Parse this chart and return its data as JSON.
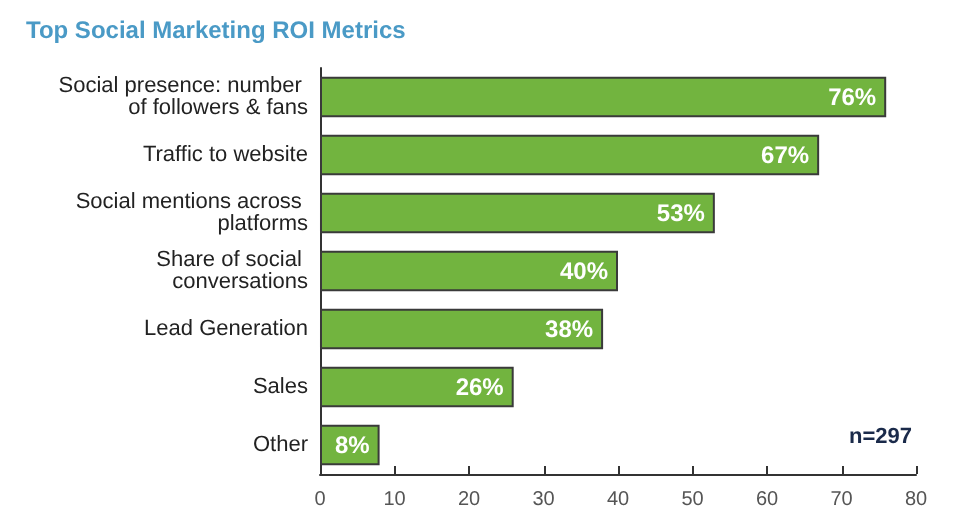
{
  "chart_data": {
    "type": "bar",
    "orientation": "horizontal",
    "title": "Top Social Marketing ROI Metrics",
    "categories": [
      "Social presence: number of followers & fans",
      "Traffic to website",
      "Social mentions across platforms",
      "Share of social conversations",
      "Lead Generation",
      "Sales",
      "Other"
    ],
    "values": [
      76,
      67,
      53,
      40,
      38,
      26,
      8
    ],
    "value_labels": [
      "76%",
      "67%",
      "53%",
      "40%",
      "38%",
      "26%",
      "8%"
    ],
    "color": "#72b43f",
    "xlim": [
      0,
      80
    ],
    "xticks": [
      0,
      10,
      20,
      30,
      40,
      50,
      60,
      70,
      80
    ],
    "grid": false,
    "annotations": [
      "n=297"
    ]
  }
}
